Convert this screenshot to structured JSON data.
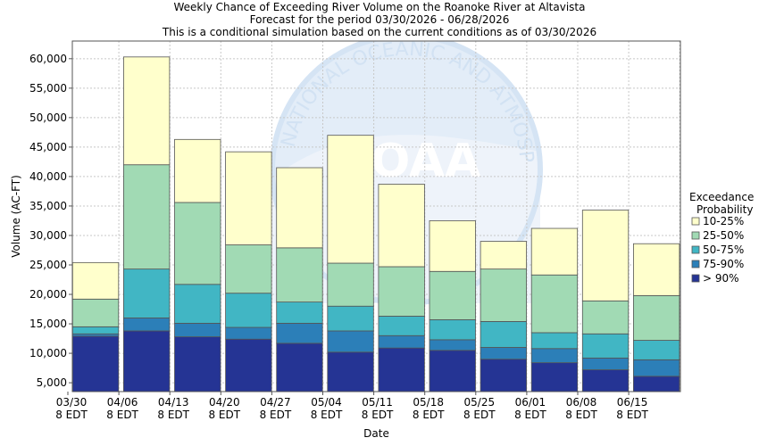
{
  "chart_data": {
    "type": "bar",
    "stacked": true,
    "title": "Weekly Chance of Exceeding River Volume on the Roanoke River at Altavista",
    "subtitle_lines": [
      "Forecast for the period 03/30/2026 - 06/28/2026",
      "This is a conditional simulation based on the current conditions as of 03/30/2026"
    ],
    "xlabel": "Date",
    "ylabel": "Volume (AC-FT)",
    "ylim": [
      3500,
      63000
    ],
    "yticks": [
      "5,000",
      "10,000",
      "15,000",
      "20,000",
      "25,000",
      "30,000",
      "35,000",
      "40,000",
      "45,000",
      "50,000",
      "55,000",
      "60,000"
    ],
    "ytick_values": [
      5000,
      10000,
      15000,
      20000,
      25000,
      30000,
      35000,
      40000,
      45000,
      50000,
      55000,
      60000
    ],
    "xtick_lines": [
      [
        "03/30",
        "8 EDT"
      ],
      [
        "04/06",
        "8 EDT"
      ],
      [
        "04/13",
        "8 EDT"
      ],
      [
        "04/20",
        "8 EDT"
      ],
      [
        "04/27",
        "8 EDT"
      ],
      [
        "05/04",
        "8 EDT"
      ],
      [
        "05/11",
        "8 EDT"
      ],
      [
        "05/18",
        "8 EDT"
      ],
      [
        "05/25",
        "8 EDT"
      ],
      [
        "06/01",
        "8 EDT"
      ],
      [
        "06/08",
        "8 EDT"
      ],
      [
        "06/15",
        "8 EDT"
      ]
    ],
    "grid": true,
    "legend": {
      "title_lines": [
        "Exceedance",
        "Probability"
      ],
      "placement": "right",
      "entries": [
        {
          "label": "10-25%",
          "color": "#ffffcc"
        },
        {
          "label": "25-50%",
          "color": "#a1dab4"
        },
        {
          "label": "50-75%",
          "color": "#41b6c4"
        },
        {
          "label": "75-90%",
          "color": "#2c7fb8"
        },
        {
          "label": "> 90%",
          "color": "#253494"
        }
      ]
    },
    "series_top_values": [
      {
        "name": "> 90%",
        "color": "#253494",
        "values": [
          12900,
          13800,
          12800,
          12400,
          11700,
          10200,
          10900,
          10500,
          9000,
          8400,
          7200,
          6100
        ]
      },
      {
        "name": "75-90%",
        "color": "#2c7fb8",
        "values": [
          13300,
          16000,
          15100,
          14400,
          15100,
          13800,
          13000,
          12300,
          11000,
          10800,
          9200,
          8900
        ]
      },
      {
        "name": "50-75%",
        "color": "#41b6c4",
        "values": [
          14500,
          24300,
          21700,
          20200,
          18700,
          18000,
          16300,
          15700,
          15400,
          13500,
          13300,
          12200
        ]
      },
      {
        "name": "25-50%",
        "color": "#a1dab4",
        "values": [
          19200,
          42000,
          35600,
          28400,
          27900,
          25300,
          24700,
          23900,
          24300,
          23300,
          18900,
          19800
        ]
      },
      {
        "name": "10-25%",
        "color": "#ffffcc",
        "values": [
          25400,
          60300,
          46300,
          44200,
          41500,
          47000,
          38700,
          32500,
          29000,
          31200,
          34300,
          28600
        ]
      }
    ],
    "watermark_text": "NATIONAL OCEANIC AND ATMOSPHERIC ADMINISTRATION",
    "watermark_logo_text": "NOAA"
  }
}
